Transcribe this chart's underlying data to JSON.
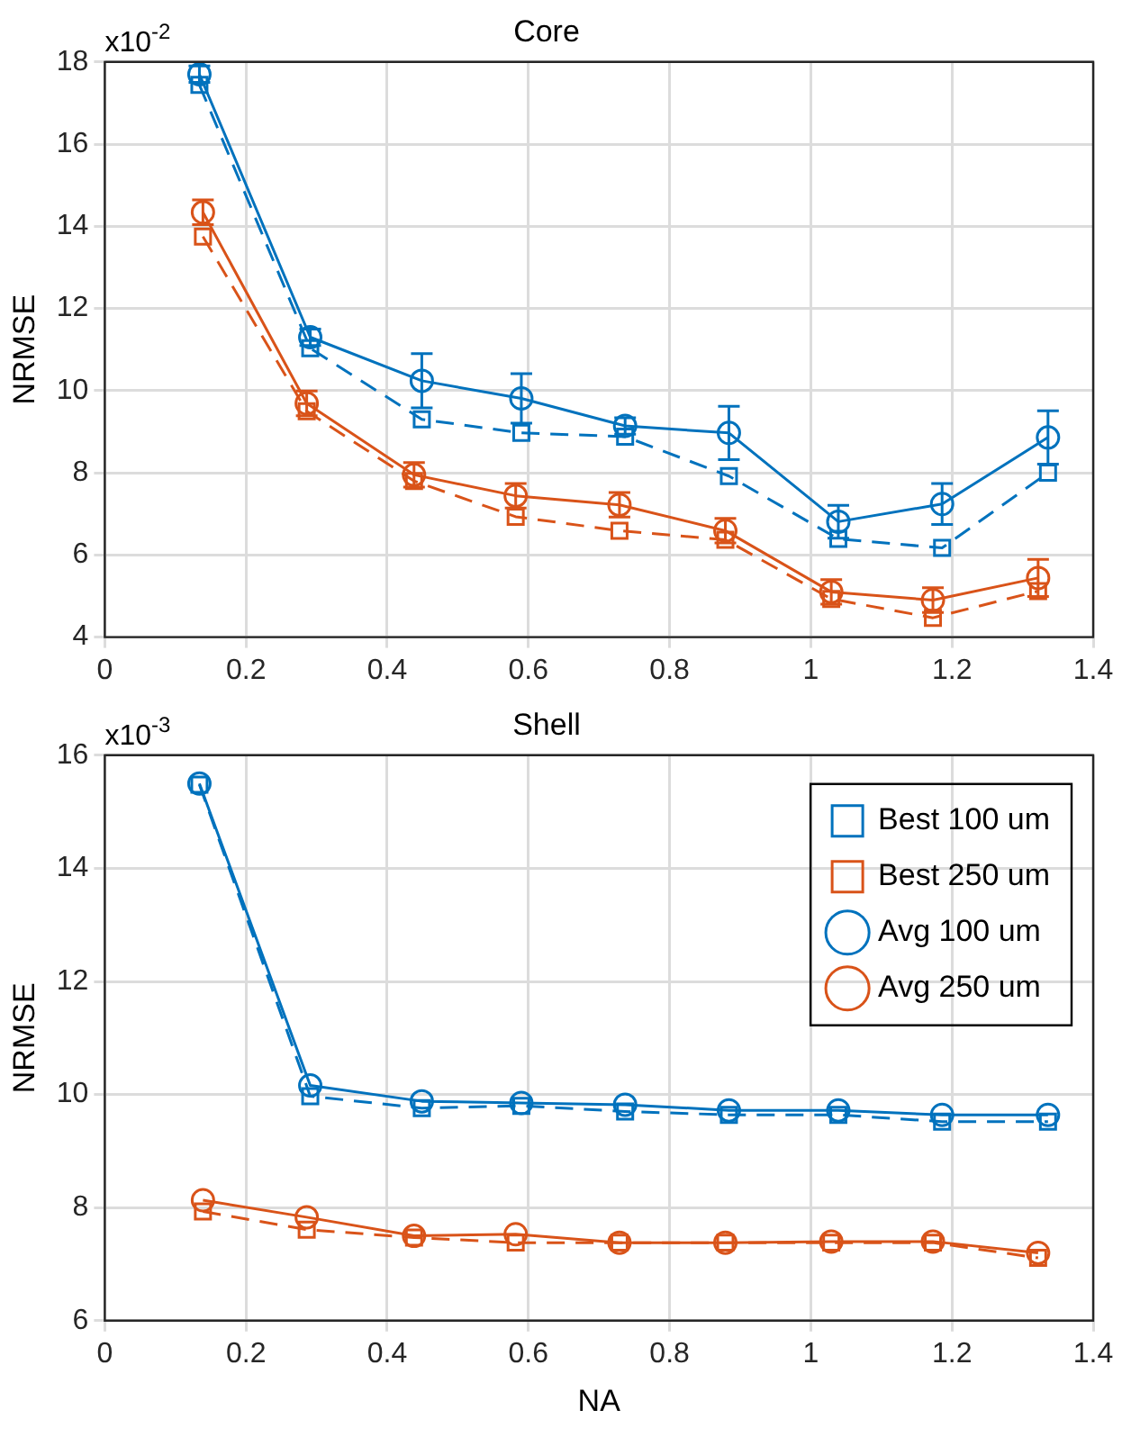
{
  "chart_data": [
    {
      "type": "line",
      "title": "Core",
      "ylabel": "NRMSE",
      "annotations": [
        "x10$^{-2}$"
      ],
      "xlim": [
        0,
        1.4
      ],
      "xticks": [
        0,
        0.2,
        0.4,
        0.6,
        0.8,
        1,
        1.2,
        1.4
      ],
      "ylim": [
        4,
        18
      ],
      "yticks": [
        4,
        6,
        8,
        10,
        12,
        14,
        16,
        18
      ],
      "grid": true,
      "legend": false,
      "series": [
        {
          "color": "#0072bd",
          "marker": "square",
          "line_style": "dashed",
          "x": [
            0.134,
            0.291,
            0.449,
            0.59,
            0.737,
            0.884,
            1.039,
            1.186,
            1.336
          ],
          "values": [
            17.44,
            11.03,
            9.3,
            8.97,
            8.88,
            7.92,
            6.39,
            6.17,
            8.0
          ]
        },
        {
          "color": "#d95319",
          "marker": "square",
          "line_style": "dashed",
          "x": [
            0.139,
            0.286,
            0.438,
            0.582,
            0.729,
            0.879,
            1.029,
            1.173,
            1.322
          ],
          "values": [
            13.75,
            9.5,
            7.8,
            6.93,
            6.59,
            6.37,
            4.93,
            4.47,
            5.12
          ]
        },
        {
          "color": "#0072bd",
          "marker": "circle",
          "line_style": "solid",
          "x": [
            0.134,
            0.291,
            0.449,
            0.59,
            0.737,
            0.884,
            1.039,
            1.186,
            1.336
          ],
          "values": [
            17.7,
            11.3,
            10.24,
            9.81,
            9.14,
            8.97,
            6.81,
            7.24,
            8.86
          ],
          "errors": [
            0.2,
            0.2,
            0.66,
            0.6,
            0.2,
            0.65,
            0.4,
            0.5,
            0.65
          ]
        },
        {
          "color": "#d95319",
          "marker": "circle",
          "line_style": "solid",
          "x": [
            0.139,
            0.286,
            0.438,
            0.582,
            0.729,
            0.879,
            1.029,
            1.173,
            1.322
          ],
          "values": [
            14.34,
            9.69,
            7.95,
            7.44,
            7.22,
            6.59,
            5.1,
            4.9,
            5.44
          ],
          "errors": [
            0.3,
            0.3,
            0.3,
            0.3,
            0.3,
            0.3,
            0.3,
            0.3,
            0.45
          ]
        }
      ]
    },
    {
      "type": "line",
      "title": "Shell",
      "xlabel": "NA",
      "ylabel": "NRMSE",
      "annotations": [
        "x10$^{-3}$"
      ],
      "xlim": [
        0,
        1.4
      ],
      "xticks": [
        0,
        0.2,
        0.4,
        0.6,
        0.8,
        1,
        1.2,
        1.4
      ],
      "ylim": [
        6,
        16
      ],
      "yticks": [
        6,
        8,
        10,
        12,
        14,
        16
      ],
      "grid": true,
      "legend": "top right",
      "series": [
        {
          "name": "Best 100 um",
          "color": "#0072bd",
          "marker": "square",
          "line_style": "dashed",
          "x": [
            0.134,
            0.291,
            0.449,
            0.59,
            0.737,
            0.884,
            1.039,
            1.186,
            1.336
          ],
          "values": [
            15.48,
            9.97,
            9.76,
            9.8,
            9.7,
            9.64,
            9.64,
            9.52,
            9.52
          ]
        },
        {
          "name": "Best 250 um",
          "color": "#d95319",
          "marker": "square",
          "line_style": "dashed",
          "x": [
            0.139,
            0.286,
            0.438,
            0.582,
            0.729,
            0.879,
            1.029,
            1.173,
            1.322
          ],
          "values": [
            7.93,
            7.61,
            7.47,
            7.38,
            7.38,
            7.38,
            7.38,
            7.38,
            7.11
          ]
        },
        {
          "name": "Avg 100 um",
          "color": "#0072bd",
          "marker": "circle",
          "line_style": "solid",
          "x": [
            0.134,
            0.291,
            0.449,
            0.59,
            0.737,
            0.884,
            1.039,
            1.186,
            1.336
          ],
          "values": [
            15.5,
            10.16,
            9.88,
            9.85,
            9.82,
            9.72,
            9.72,
            9.64,
            9.64
          ]
        },
        {
          "name": "Avg 250 um",
          "color": "#d95319",
          "marker": "circle",
          "line_style": "solid",
          "x": [
            0.139,
            0.286,
            0.438,
            0.582,
            0.729,
            0.879,
            1.029,
            1.173,
            1.322
          ],
          "values": [
            8.13,
            7.83,
            7.5,
            7.53,
            7.38,
            7.38,
            7.4,
            7.4,
            7.2
          ]
        }
      ]
    }
  ]
}
